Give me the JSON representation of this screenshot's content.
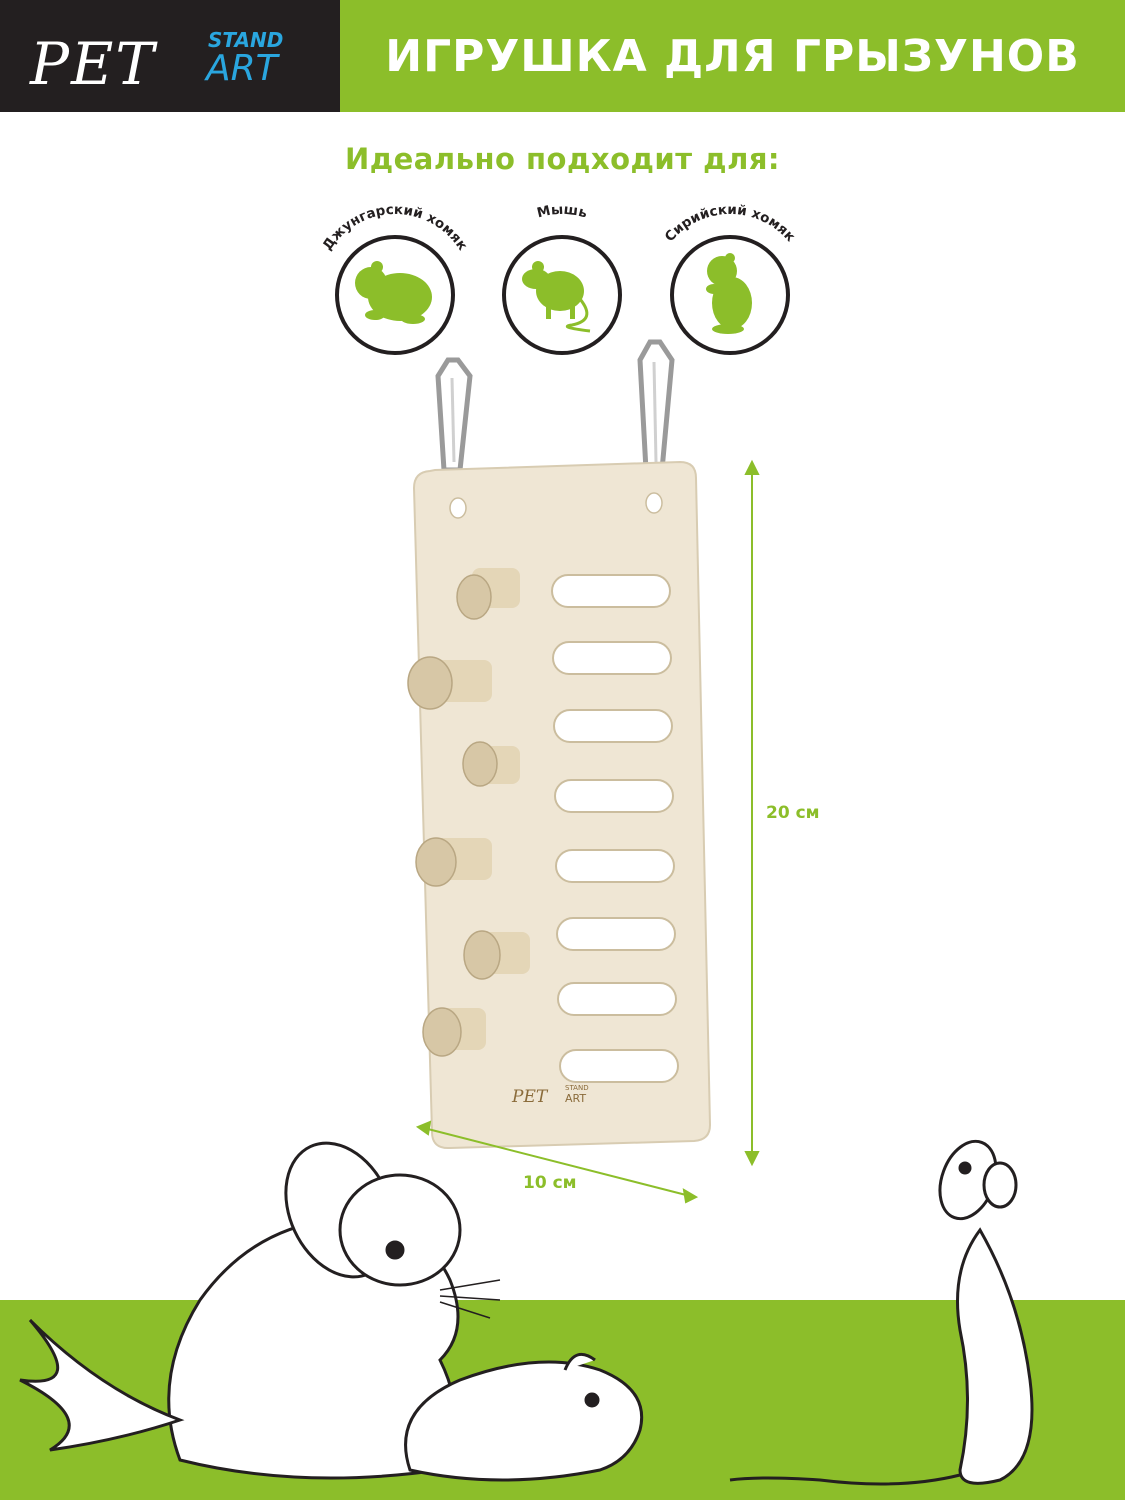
{
  "header": {
    "logo": {
      "pet": "PET",
      "stand": "STAND",
      "art": "ART"
    },
    "title": "ИГРУШКА ДЛЯ ГРЫЗУНОВ"
  },
  "subtitle": "Идеально подходит для:",
  "badges": [
    {
      "label": "Джунгарский хомяк",
      "icon": "hamster-icon"
    },
    {
      "label": "Мышь",
      "icon": "mouse-icon"
    },
    {
      "label": "Сирийский хомяк",
      "icon": "standing-hamster-icon"
    }
  ],
  "product": {
    "engraving": {
      "pet": "PET",
      "stand": "STAND",
      "art": "ART"
    }
  },
  "dimensions": {
    "height": "20 см",
    "width": "10 см"
  },
  "colors": {
    "accent": "#8cbe2a",
    "dark": "#231f20",
    "wood": "#efe6d4"
  }
}
